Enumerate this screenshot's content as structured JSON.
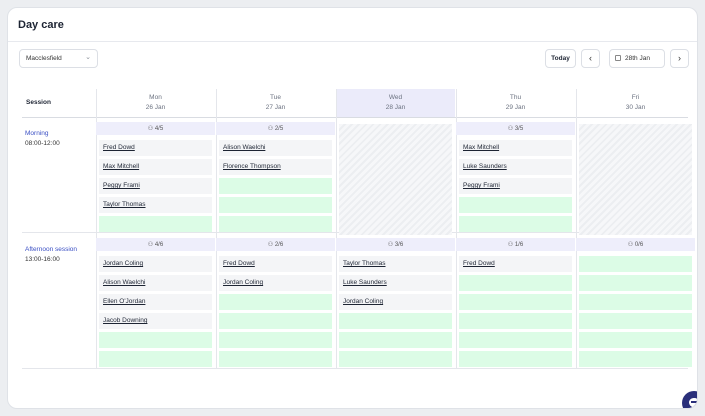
{
  "title": "Day care",
  "location": {
    "value": "Macclesfield"
  },
  "toolbar": {
    "today_label": "Today",
    "prev_label": "‹",
    "next_label": "›",
    "date_label": "28th Jan"
  },
  "session_header": "Session",
  "days": [
    {
      "name": "Mon",
      "date": "26 Jan"
    },
    {
      "name": "Tue",
      "date": "27 Jan"
    },
    {
      "name": "Wed",
      "date": "28 Jan"
    },
    {
      "name": "Thu",
      "date": "29 Jan"
    },
    {
      "name": "Fri",
      "date": "30 Jan"
    }
  ],
  "sessions": [
    {
      "name": "Morning",
      "time": "08:00-12:00",
      "counts": [
        "4/5",
        "2/5",
        "",
        "3/5",
        ""
      ],
      "closed": [
        false,
        false,
        true,
        false,
        true
      ],
      "bookings": [
        [
          "Fred Dowd",
          "Max Mitchell",
          "Peggy Frami",
          "Taylor Thomas"
        ],
        [
          "Alison Waelchi",
          "Florence Thompson"
        ],
        [],
        [
          "Max Mitchell",
          "Luke Saunders",
          "Peggy Frami"
        ],
        []
      ],
      "capacity": 5
    },
    {
      "name": "Afternoon session",
      "time": "13:00-16:00",
      "counts": [
        "4/6",
        "2/6",
        "3/6",
        "1/6",
        "0/6"
      ],
      "closed": [
        false,
        false,
        false,
        false,
        false
      ],
      "bookings": [
        [
          "Jordan Coling",
          "Alison Waelchi",
          "Ellen O'Jordan",
          "Jacob Downing"
        ],
        [
          "Fred Dowd",
          "Jordan Coling"
        ],
        [
          "Taylor Thomas",
          "Luke Saunders",
          "Jordan Coling"
        ],
        [
          "Fred Dowd"
        ],
        []
      ],
      "capacity": 6
    }
  ]
}
